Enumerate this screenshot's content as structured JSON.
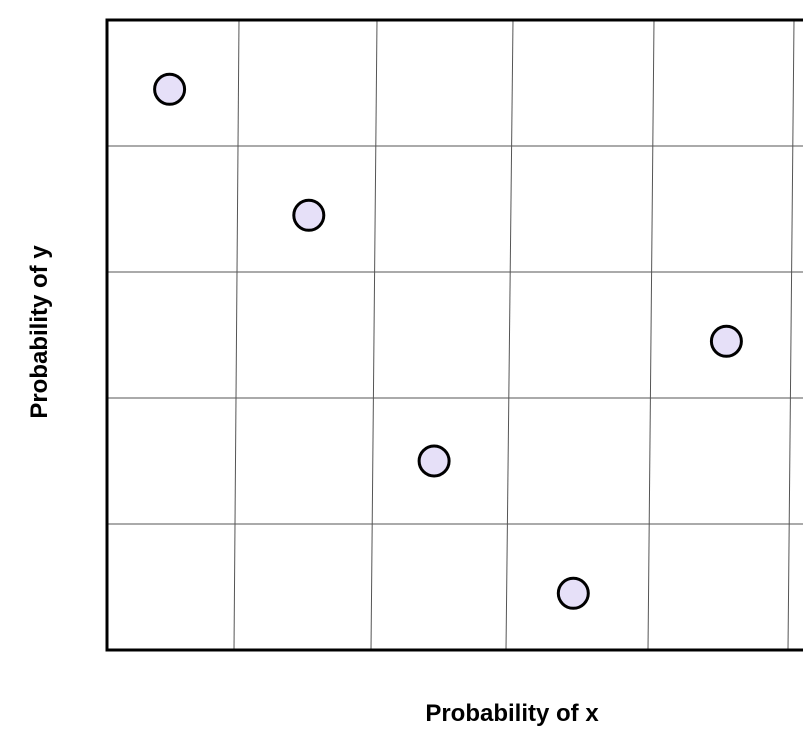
{
  "chart_data": {
    "type": "scatter",
    "title": "",
    "xlabel": "Probability of x",
    "ylabel": "Probability of y",
    "xlim": [
      0,
      5
    ],
    "ylim": [
      0,
      5
    ],
    "grid": true,
    "marker_fill": "#e6e0f8",
    "marker_stroke": "#000000",
    "points": [
      {
        "x": 0.45,
        "y": 4.45
      },
      {
        "x": 1.45,
        "y": 3.45
      },
      {
        "x": 2.35,
        "y": 1.5
      },
      {
        "x": 3.35,
        "y": 0.45
      },
      {
        "x": 4.45,
        "y": 2.45
      }
    ]
  }
}
